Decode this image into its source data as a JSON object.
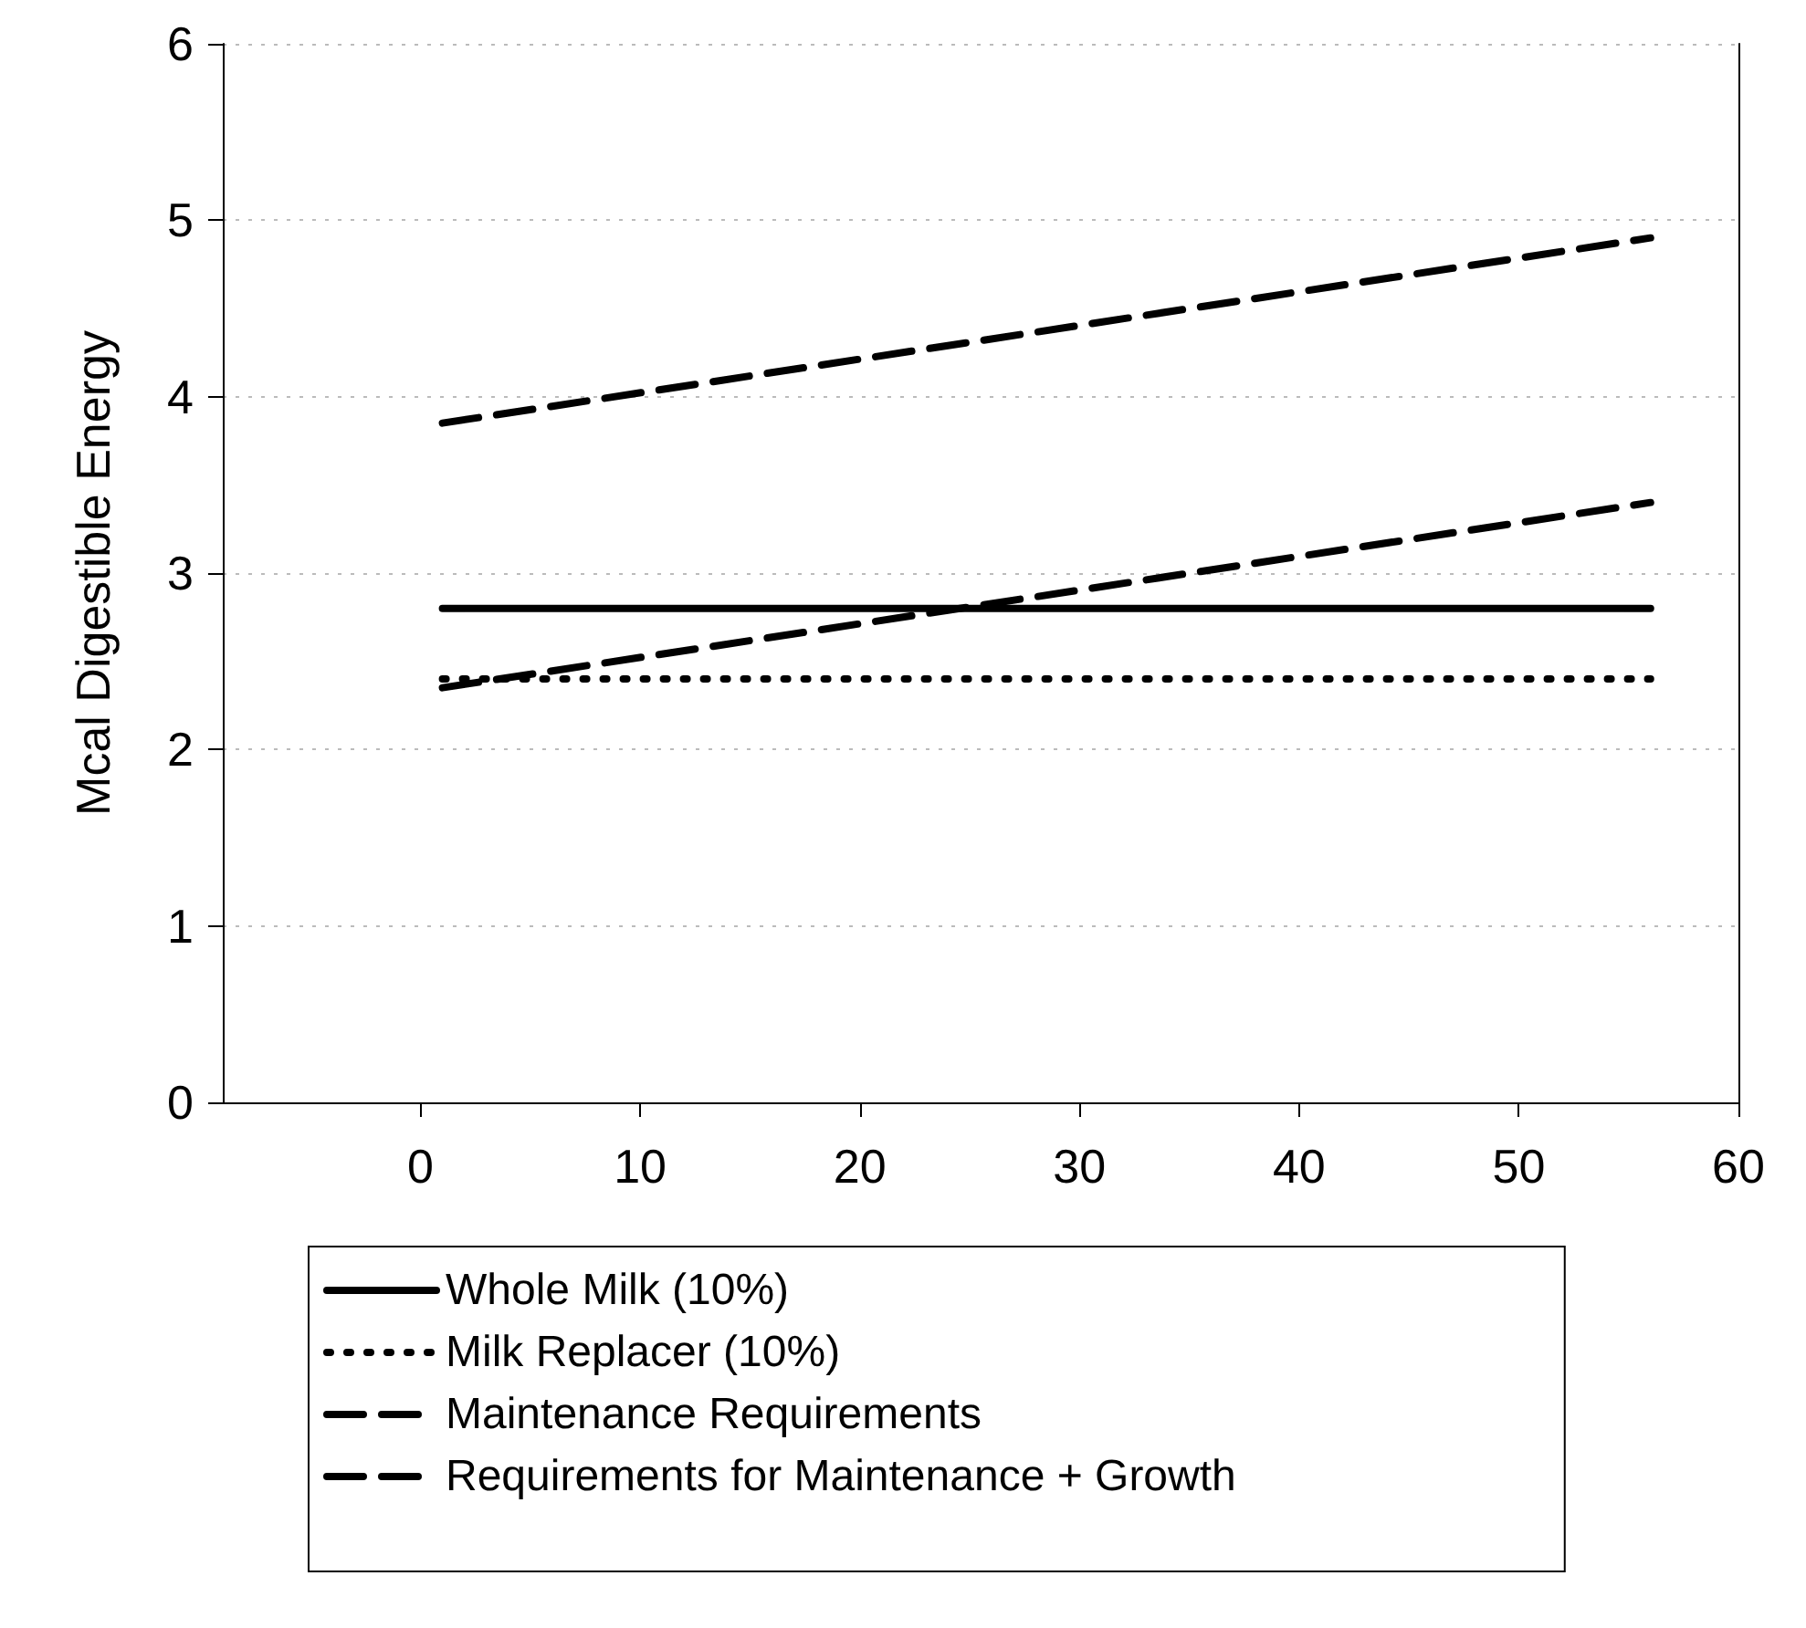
{
  "chart_data": {
    "type": "line",
    "ylabel": "Mcal Digestible Energy",
    "x": [
      1,
      56
    ],
    "xlim": [
      -9,
      60
    ],
    "xticks": [
      0,
      10,
      20,
      30,
      40,
      50,
      60
    ],
    "ylim": [
      0,
      6
    ],
    "yticks": [
      0,
      1,
      2,
      3,
      4,
      5,
      6
    ],
    "grid": "y",
    "legend": "bottom",
    "marker": "none",
    "series": [
      {
        "name": "Whole Milk (10%)",
        "color": "#000000",
        "line_style": "solid",
        "values": [
          2.8,
          2.8
        ]
      },
      {
        "name": "Milk Replacer (10%)",
        "color": "#000000",
        "line_style": "dotted",
        "values": [
          2.4,
          2.4
        ]
      },
      {
        "name": "Maintenance Requirements",
        "color": "#000000",
        "line_style": "dashed",
        "values": [
          2.35,
          3.4
        ]
      },
      {
        "name": "Requirements for Maintenance + Growth",
        "color": "#000000",
        "line_style": "dashed",
        "values": [
          3.85,
          4.9
        ]
      }
    ]
  }
}
